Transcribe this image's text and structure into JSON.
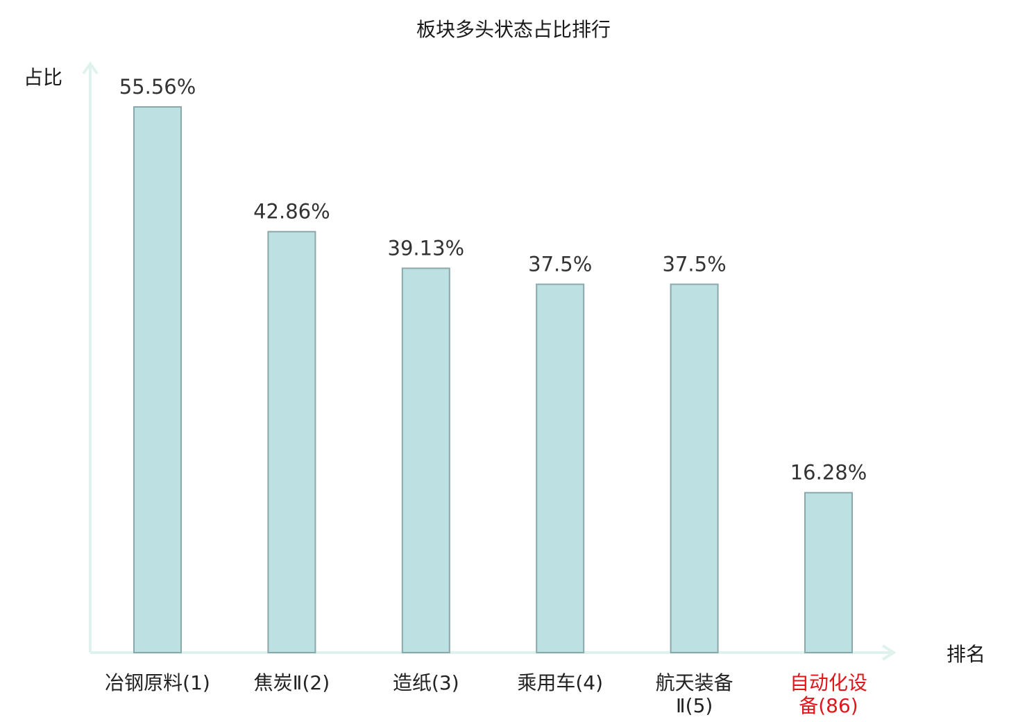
{
  "chart_data": {
    "type": "bar",
    "title": "板块多头状态占比排行",
    "ylabel": "占比",
    "xlabel": "排名",
    "ylim": [
      0,
      60
    ],
    "categories": [
      [
        "冶钢原料(1)"
      ],
      [
        "焦炭Ⅱ(2)"
      ],
      [
        "造纸(3)"
      ],
      [
        "乘用车(4)"
      ],
      [
        "航天装备",
        "Ⅱ(5)"
      ],
      [
        "自动化设",
        "备(86)"
      ]
    ],
    "values": [
      55.56,
      42.86,
      39.13,
      37.5,
      37.5,
      16.28
    ],
    "value_labels": [
      "55.56%",
      "42.86%",
      "39.13%",
      "37.5%",
      "37.5%",
      "16.28%"
    ],
    "highlight_index": 5,
    "grid": false,
    "colors": {
      "bar_fill": "#bde0e3",
      "bar_stroke": "#8aa8aa",
      "axis": "#dff2ee",
      "highlight_text": "#e0161c"
    }
  }
}
